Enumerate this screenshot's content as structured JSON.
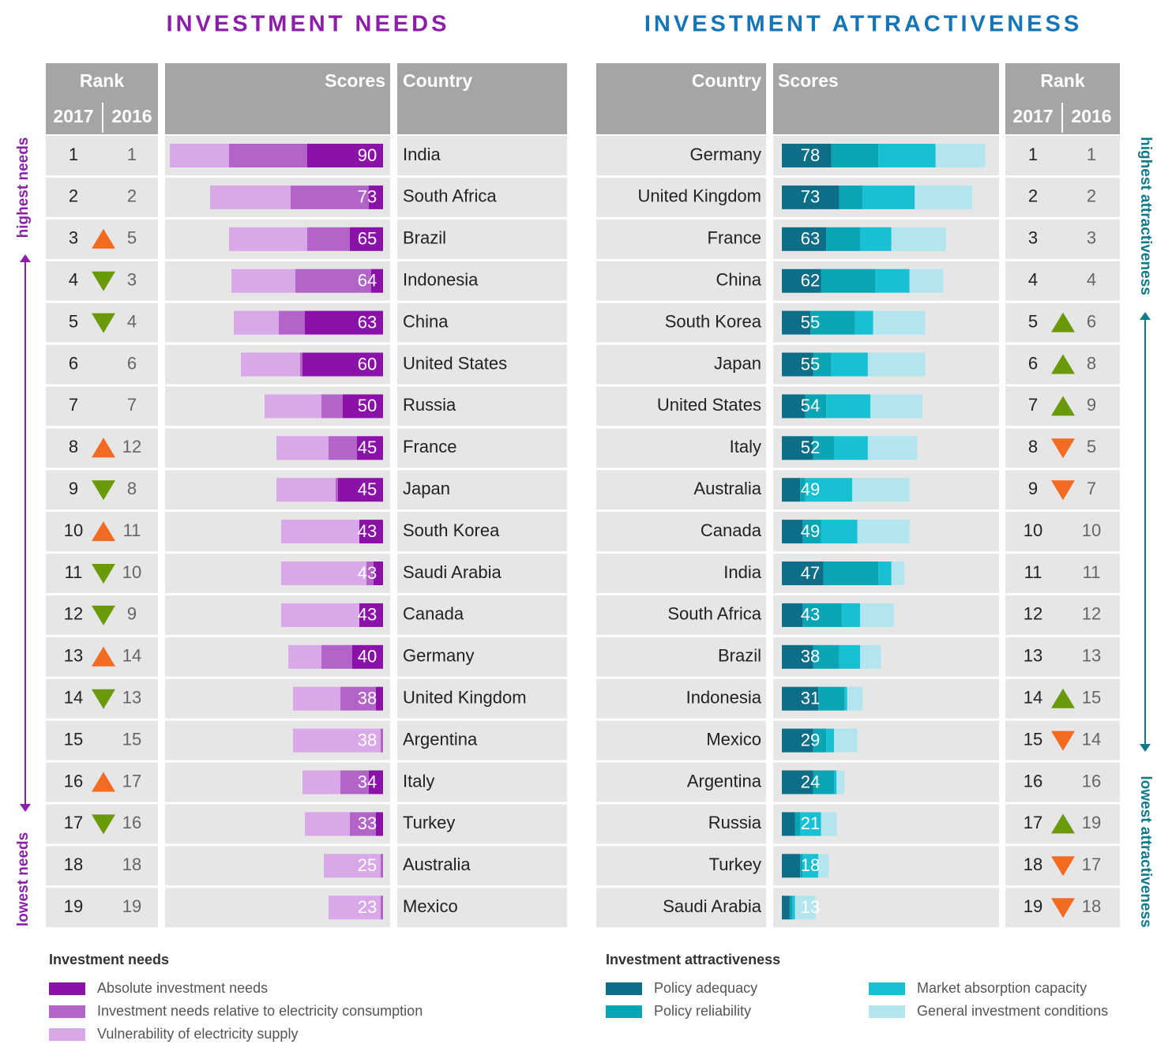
{
  "chart_data": [
    {
      "type": "bar",
      "orientation": "horizontal",
      "stacked": true,
      "title": "INVESTMENT NEEDS",
      "title_color": "#8b1fa9",
      "rank_header": "Rank",
      "year_headers": [
        "2017",
        "2016"
      ],
      "scores_header": "Scores",
      "country_header": "Country",
      "direction_labels": [
        "highest needs",
        "lowest needs"
      ],
      "direction_color": "#8b1fa9",
      "up_color": "#f26b21",
      "down_color": "#6a9a0a",
      "categories": [
        "India",
        "South Africa",
        "Brazil",
        "Indonesia",
        "China",
        "United States",
        "Russia",
        "France",
        "Japan",
        "South Korea",
        "Saudi Arabia",
        "Canada",
        "Germany",
        "United Kingdom",
        "Argentina",
        "Italy",
        "Turkey",
        "Australia",
        "Mexico"
      ],
      "rank_2017": [
        1,
        2,
        3,
        4,
        5,
        6,
        7,
        8,
        9,
        10,
        11,
        12,
        13,
        14,
        15,
        16,
        17,
        18,
        19
      ],
      "rank_2016": [
        1,
        2,
        5,
        3,
        4,
        6,
        7,
        12,
        8,
        11,
        10,
        9,
        14,
        13,
        15,
        17,
        16,
        18,
        19
      ],
      "totals": [
        90,
        73,
        65,
        64,
        63,
        60,
        50,
        45,
        45,
        43,
        43,
        43,
        40,
        38,
        38,
        34,
        33,
        25,
        23
      ],
      "xlim": [
        0,
        100
      ],
      "legend_title": "Investment needs",
      "series": [
        {
          "name": "Absolute investment needs",
          "color": "#8a12a8",
          "values": [
            32,
            6,
            14,
            5,
            33,
            34,
            17,
            11,
            19,
            10,
            4,
            10,
            13,
            3,
            0,
            6,
            3,
            0,
            0
          ]
        },
        {
          "name": "Investment needs relative to electricity consumption",
          "color": "#b264c8",
          "values": [
            33,
            33,
            18,
            32,
            11,
            1,
            9,
            12,
            1,
            0,
            3,
            0,
            13,
            15,
            1,
            12,
            11,
            1,
            1
          ]
        },
        {
          "name": "Vulnerability of electricity supply",
          "color": "#d9a8e8",
          "values": [
            25,
            34,
            33,
            27,
            19,
            25,
            24,
            22,
            25,
            33,
            36,
            33,
            14,
            20,
            37,
            16,
            19,
            24,
            22
          ]
        }
      ]
    },
    {
      "type": "bar",
      "orientation": "horizontal",
      "stacked": true,
      "title": "INVESTMENT ATTRACTIVENESS",
      "title_color": "#1575b6",
      "rank_header": "Rank",
      "year_headers": [
        "2017",
        "2016"
      ],
      "scores_header": "Scores",
      "country_header": "Country",
      "direction_labels": [
        "highest attractiveness",
        "lowest attractiveness"
      ],
      "direction_color": "#0e7a8c",
      "up_color": "#6a9a0a",
      "down_color": "#f26b21",
      "categories": [
        "Germany",
        "United Kingdom",
        "France",
        "China",
        "South Korea",
        "Japan",
        "United States",
        "Italy",
        "Australia",
        "Canada",
        "India",
        "South Africa",
        "Brazil",
        "Indonesia",
        "Mexico",
        "Argentina",
        "Russia",
        "Turkey",
        "Saudi Arabia"
      ],
      "rank_2017": [
        1,
        2,
        3,
        4,
        5,
        6,
        7,
        8,
        9,
        10,
        11,
        12,
        13,
        14,
        15,
        16,
        17,
        18,
        19
      ],
      "rank_2016": [
        1,
        2,
        3,
        4,
        6,
        8,
        9,
        5,
        7,
        10,
        11,
        12,
        13,
        15,
        14,
        16,
        19,
        17,
        18
      ],
      "totals": [
        78,
        73,
        63,
        62,
        55,
        55,
        54,
        52,
        49,
        49,
        47,
        43,
        38,
        31,
        29,
        24,
        21,
        18,
        13
      ],
      "xlim": [
        0,
        100
      ],
      "legend_title": "Investment attractiveness",
      "series": [
        {
          "name": "Policy adequacy",
          "color": "#0f6e87",
          "values": [
            19,
            22,
            17,
            15,
            11,
            12,
            9,
            12,
            7,
            8,
            16,
            8,
            12,
            14,
            12,
            12,
            5,
            7,
            3
          ]
        },
        {
          "name": "Policy reliability",
          "color": "#0aa5b4",
          "values": [
            18,
            9,
            13,
            21,
            17,
            7,
            8,
            8,
            2,
            7,
            21,
            15,
            10,
            10,
            5,
            8,
            2,
            1,
            1
          ]
        },
        {
          "name": "Market absorption capacity",
          "color": "#17c0d2",
          "values": [
            22,
            20,
            12,
            13,
            7,
            14,
            17,
            13,
            18,
            14,
            5,
            7,
            8,
            1,
            3,
            1,
            8,
            6,
            1
          ]
        },
        {
          "name": "General investment conditions",
          "color": "#b3e5ef",
          "values": [
            19,
            22,
            21,
            13,
            20,
            22,
            20,
            19,
            22,
            20,
            5,
            13,
            8,
            6,
            9,
            3,
            6,
            4,
            8
          ]
        }
      ]
    }
  ]
}
